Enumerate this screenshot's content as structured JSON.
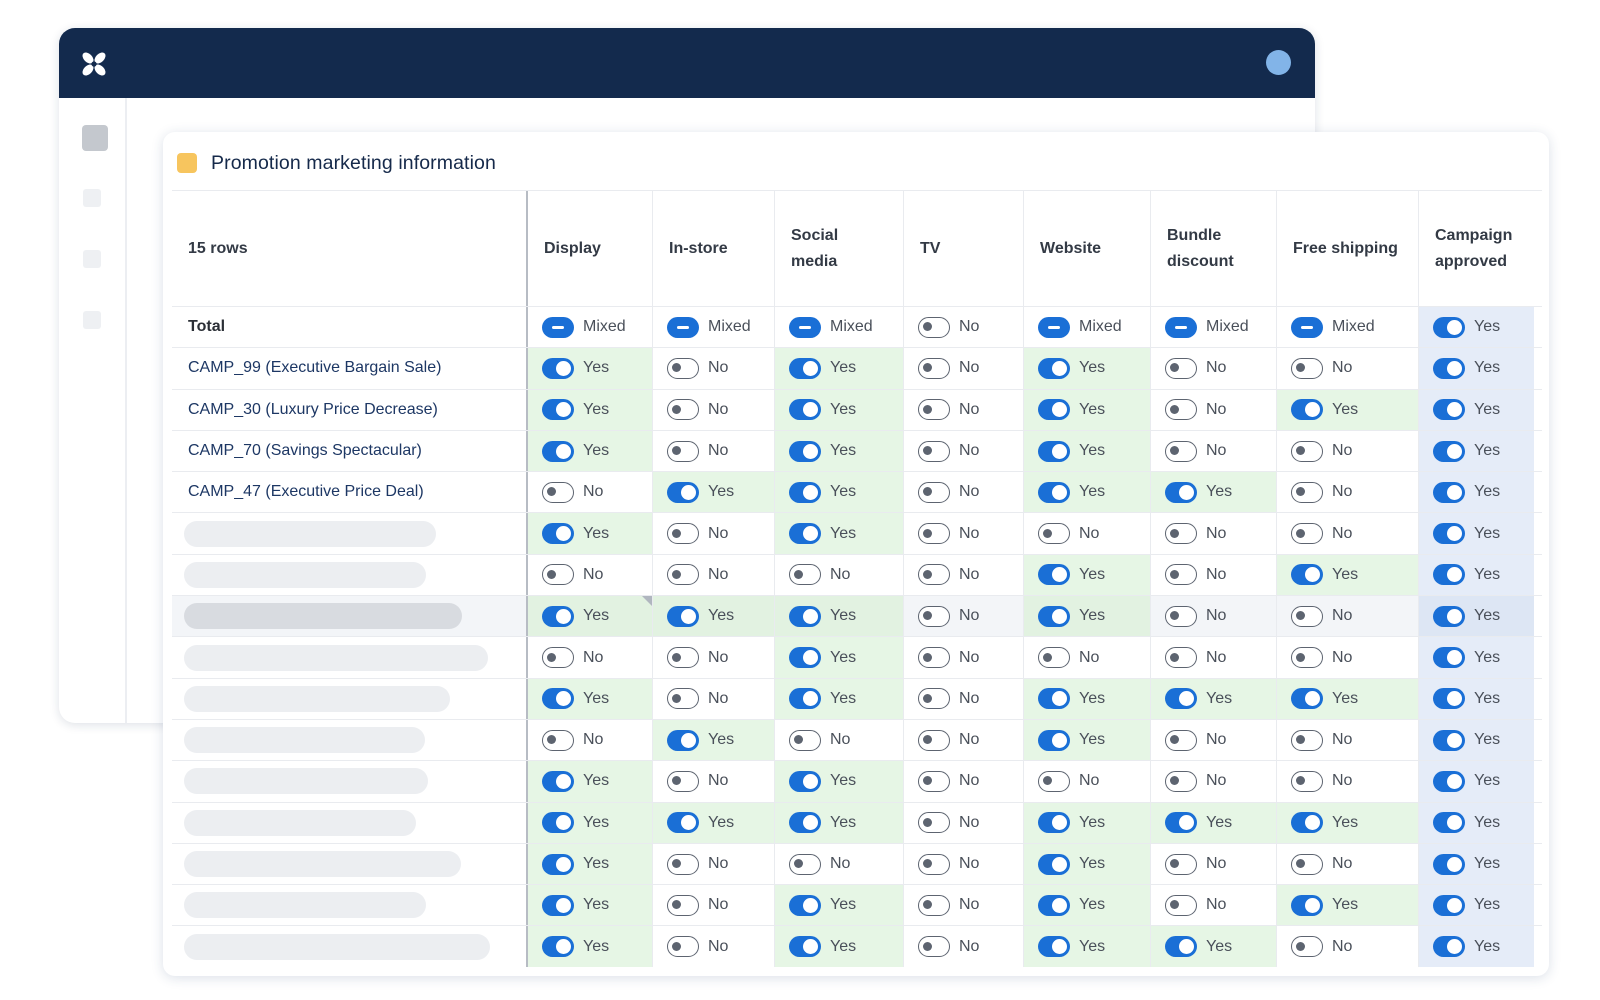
{
  "app": {
    "logo_icon": "butterfly-logo-icon",
    "colors": {
      "header": "#132a4d",
      "avatar": "#82b4e8",
      "toggle_on": "#1a6fd6",
      "cell_yes": "#e6f6e5",
      "cell_approved": "#e5ecf8",
      "title_chip": "#f7c55e"
    }
  },
  "card": {
    "title": "Promotion marketing information"
  },
  "table": {
    "row_count_label": "15 rows",
    "columns": [
      "Display",
      "In-store",
      "Social media",
      "TV",
      "Website",
      "Bundle discount",
      "Free shipping",
      "Campaign approved"
    ],
    "total": {
      "label": "Total",
      "values": [
        "Mixed",
        "Mixed",
        "Mixed",
        "No",
        "Mixed",
        "Mixed",
        "Mixed",
        "Yes"
      ]
    },
    "rows": [
      {
        "name": "CAMP_99 (Executive Bargain Sale)",
        "values": [
          "Yes",
          "No",
          "Yes",
          "No",
          "Yes",
          "No",
          "No",
          "Yes"
        ]
      },
      {
        "name": "CAMP_30 (Luxury Price Decrease)",
        "values": [
          "Yes",
          "No",
          "Yes",
          "No",
          "Yes",
          "No",
          "Yes",
          "Yes"
        ]
      },
      {
        "name": "CAMP_70 (Savings Spectacular)",
        "values": [
          "Yes",
          "No",
          "Yes",
          "No",
          "Yes",
          "No",
          "No",
          "Yes"
        ]
      },
      {
        "name": "CAMP_47 (Executive Price Deal)",
        "values": [
          "No",
          "Yes",
          "Yes",
          "No",
          "Yes",
          "Yes",
          "No",
          "Yes"
        ]
      },
      {
        "name": "",
        "values": [
          "Yes",
          "No",
          "Yes",
          "No",
          "No",
          "No",
          "No",
          "Yes"
        ]
      },
      {
        "name": "",
        "values": [
          "No",
          "No",
          "No",
          "No",
          "Yes",
          "No",
          "Yes",
          "Yes"
        ]
      },
      {
        "name": "",
        "values": [
          "Yes",
          "Yes",
          "Yes",
          "No",
          "Yes",
          "No",
          "No",
          "Yes"
        ]
      },
      {
        "name": "",
        "values": [
          "No",
          "No",
          "Yes",
          "No",
          "No",
          "No",
          "No",
          "Yes"
        ]
      },
      {
        "name": "",
        "values": [
          "Yes",
          "No",
          "Yes",
          "No",
          "Yes",
          "Yes",
          "Yes",
          "Yes"
        ]
      },
      {
        "name": "",
        "values": [
          "No",
          "Yes",
          "No",
          "No",
          "Yes",
          "No",
          "No",
          "Yes"
        ]
      },
      {
        "name": "",
        "values": [
          "Yes",
          "No",
          "Yes",
          "No",
          "No",
          "No",
          "No",
          "Yes"
        ]
      },
      {
        "name": "",
        "values": [
          "Yes",
          "Yes",
          "Yes",
          "No",
          "Yes",
          "Yes",
          "Yes",
          "Yes"
        ]
      },
      {
        "name": "",
        "values": [
          "Yes",
          "No",
          "No",
          "No",
          "Yes",
          "No",
          "No",
          "Yes"
        ]
      },
      {
        "name": "",
        "values": [
          "Yes",
          "No",
          "Yes",
          "No",
          "Yes",
          "No",
          "Yes",
          "Yes"
        ]
      },
      {
        "name": "",
        "values": [
          "Yes",
          "No",
          "Yes",
          "No",
          "Yes",
          "Yes",
          "No",
          "Yes"
        ]
      }
    ],
    "highlighted_row_index": 6
  }
}
